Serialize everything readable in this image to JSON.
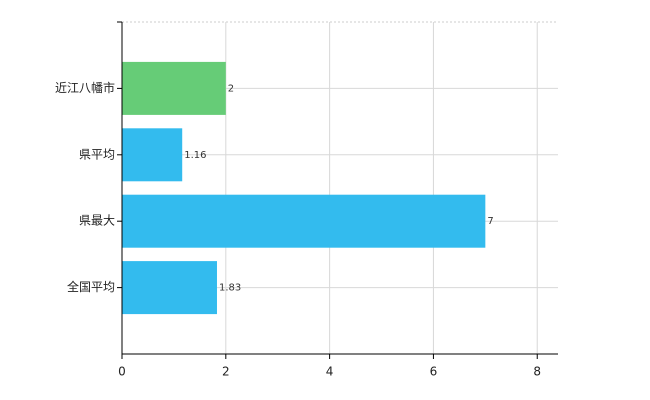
{
  "chart_data": {
    "type": "barh",
    "categories": [
      "近江八幡市",
      "県平均",
      "県最大",
      "全国平均"
    ],
    "values": [
      2,
      1.16,
      7,
      1.83
    ],
    "colors": [
      "#66cc77",
      "#33bbee",
      "#33bbee",
      "#33bbee"
    ],
    "xlim": [
      0,
      8.4
    ],
    "xticks": [
      0,
      2,
      4,
      6,
      8
    ],
    "grid": true
  }
}
